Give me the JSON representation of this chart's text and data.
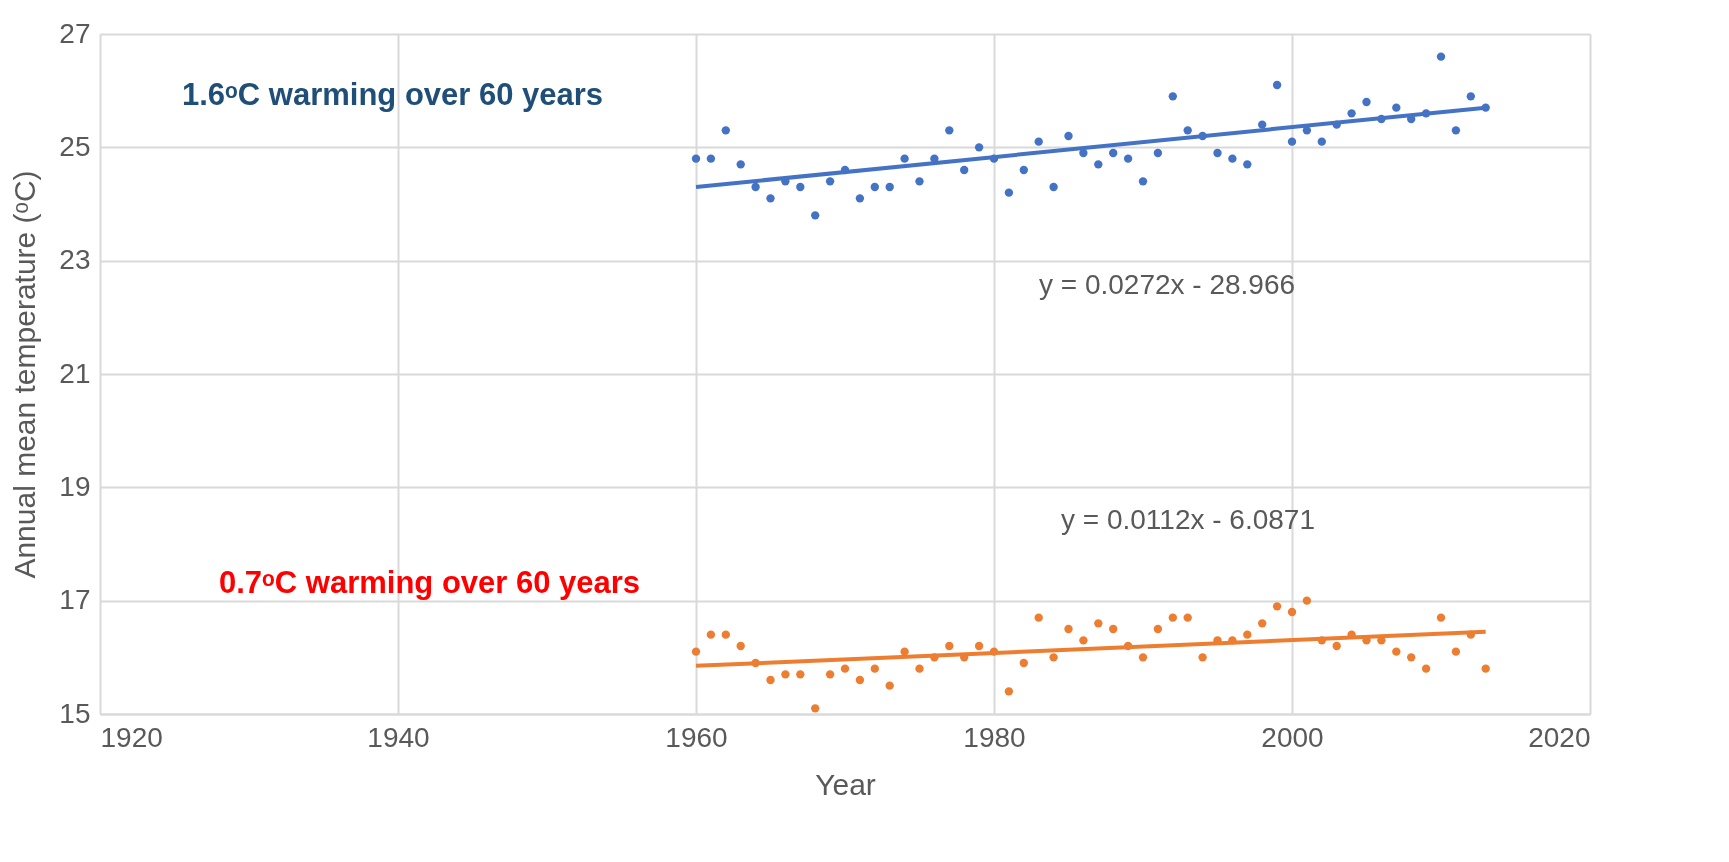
{
  "chart_data": {
    "type": "scatter",
    "xlabel": "Year",
    "ylabel": "Annual mean temperature (ᵒC)",
    "xlim": [
      1920,
      2020
    ],
    "xticks": [
      1920,
      1940,
      1960,
      1980,
      2000,
      2020
    ],
    "ylim": [
      15,
      27
    ],
    "yticks": [
      15,
      17,
      19,
      21,
      23,
      25,
      27
    ],
    "grid": true,
    "series": [
      {
        "marker": "circle",
        "color": "#4472c4",
        "x": [
          1960,
          1961,
          1962,
          1963,
          1964,
          1965,
          1966,
          1967,
          1968,
          1969,
          1970,
          1971,
          1972,
          1973,
          1974,
          1975,
          1976,
          1977,
          1978,
          1979,
          1980,
          1981,
          1982,
          1983,
          1984,
          1985,
          1986,
          1987,
          1988,
          1989,
          1990,
          1991,
          1992,
          1993,
          1994,
          1995,
          1996,
          1997,
          1998,
          1999,
          2000,
          2001,
          2002,
          2003,
          2004,
          2005,
          2006,
          2007,
          2008,
          2009,
          2010,
          2011,
          2012,
          2013
        ],
        "values": [
          24.8,
          24.8,
          25.3,
          24.7,
          24.3,
          24.1,
          24.4,
          24.3,
          23.8,
          24.4,
          24.6,
          24.1,
          24.3,
          24.3,
          24.8,
          24.4,
          24.8,
          25.3,
          24.6,
          25.0,
          24.8,
          24.2,
          24.6,
          25.1,
          24.3,
          25.2,
          24.9,
          24.7,
          24.9,
          24.8,
          24.4,
          24.9,
          25.9,
          25.3,
          25.2,
          24.9,
          24.8,
          24.7,
          25.4,
          26.1,
          25.1,
          25.3,
          25.1,
          25.4,
          25.6,
          25.8,
          25.5,
          25.7,
          25.5,
          25.6,
          26.6,
          25.3,
          25.9,
          25.7
        ]
      },
      {
        "marker": "circle",
        "color": "#ed7d31",
        "x": [
          1960,
          1961,
          1962,
          1963,
          1964,
          1965,
          1966,
          1967,
          1968,
          1969,
          1970,
          1971,
          1972,
          1973,
          1974,
          1975,
          1976,
          1977,
          1978,
          1979,
          1980,
          1981,
          1982,
          1983,
          1984,
          1985,
          1986,
          1987,
          1988,
          1989,
          1990,
          1991,
          1992,
          1993,
          1994,
          1995,
          1996,
          1997,
          1998,
          1999,
          2000,
          2001,
          2002,
          2003,
          2004,
          2005,
          2006,
          2007,
          2008,
          2009,
          2010,
          2011,
          2012,
          2013
        ],
        "values": [
          16.1,
          16.4,
          16.4,
          16.2,
          15.9,
          15.6,
          15.7,
          15.7,
          15.1,
          15.7,
          15.8,
          15.6,
          15.8,
          15.5,
          16.1,
          15.8,
          16.0,
          16.2,
          16.0,
          16.2,
          16.1,
          15.4,
          15.9,
          16.7,
          16.0,
          16.5,
          16.3,
          16.6,
          16.5,
          16.2,
          16.0,
          16.5,
          16.7,
          16.7,
          16.0,
          16.3,
          16.3,
          16.4,
          16.6,
          16.9,
          16.8,
          17.0,
          16.3,
          16.2,
          16.4,
          16.3,
          16.3,
          16.1,
          16.0,
          15.8,
          16.7,
          16.1,
          16.4,
          15.8
        ]
      },
      {
        "type": "line",
        "color": "#4472c4",
        "x": [
          1960,
          2013
        ],
        "values": [
          24.3,
          25.7
        ]
      },
      {
        "type": "line",
        "color": "#ed7d31",
        "x": [
          1960,
          2013
        ],
        "values": [
          15.85,
          16.45
        ]
      }
    ],
    "annotations": [
      "1.6ᵒC warming over 60 years",
      "y = 0.0272x - 28.966",
      "y = 0.0112x - 6.0871",
      "0.7ᵒC warming over 60 years"
    ]
  }
}
